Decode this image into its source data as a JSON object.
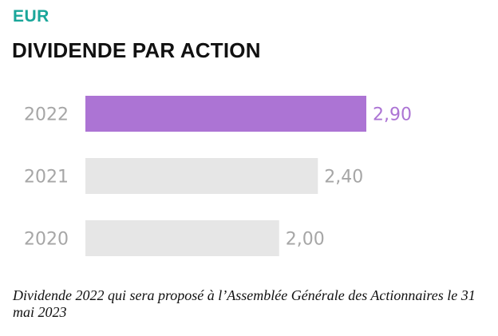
{
  "header": {
    "currency": "EUR",
    "title": "DIVIDENDE PAR ACTION"
  },
  "chart_data": {
    "type": "bar",
    "orientation": "horizontal",
    "categories": [
      "2022",
      "2021",
      "2020"
    ],
    "values": [
      2.9,
      2.4,
      2.0
    ],
    "value_labels": [
      "2,90",
      "2,40",
      "2,00"
    ],
    "highlight_index": 0,
    "title": "DIVIDENDE PAR ACTION",
    "xlabel": "",
    "ylabel": "",
    "grid": false,
    "legend": "none",
    "colors": {
      "highlight": "#ac74d4",
      "default": "#e6e6e6",
      "highlight_label": "#ac74d4",
      "default_label": "#a6a6a6",
      "category_label": "#a6a6a6"
    }
  },
  "footnote": "Dividende 2022 qui sera proposé à l’Assemblée Générale des Actionnaires le 31 mai 2023"
}
